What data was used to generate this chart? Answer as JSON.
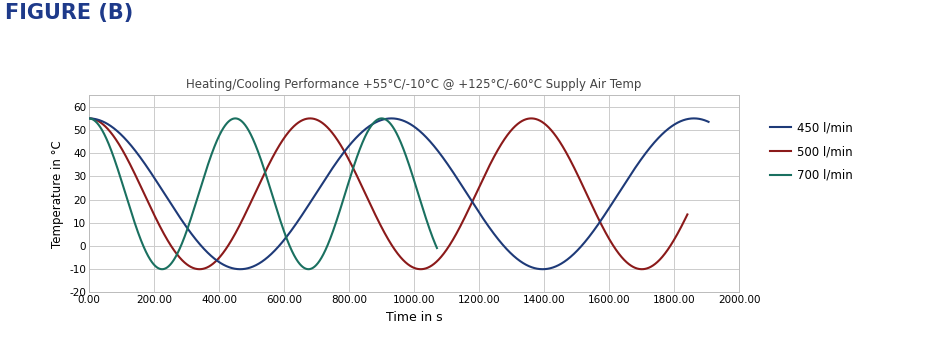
{
  "title": "Heating/Cooling Performance +55°C/-10°C @ +125°C/-60°C Supply Air Temp",
  "figure_label": "FIGURE (B)",
  "xlabel": "Time in s",
  "ylabel": "Temperature in °C",
  "xlim": [
    0,
    2000
  ],
  "ylim": [
    -20,
    65
  ],
  "yticks": [
    -20,
    -10,
    0,
    10,
    20,
    30,
    40,
    50,
    60
  ],
  "xticks": [
    0,
    200,
    400,
    600,
    800,
    1000,
    1200,
    1400,
    1600,
    1800,
    2000
  ],
  "colors": {
    "450": "#1e3a78",
    "500": "#8b1a1a",
    "700": "#1a7060"
  },
  "legend_labels": [
    "450 l/min",
    "500 l/min",
    "700 l/min"
  ],
  "background_color": "#ffffff",
  "grid_color": "#cccccc",
  "T_max": 55,
  "T_min": -10,
  "period_450": 930,
  "period_500": 680,
  "period_700": 450,
  "t_end_700": 1070,
  "t_end_500": 1840,
  "t_end_450": 1905
}
